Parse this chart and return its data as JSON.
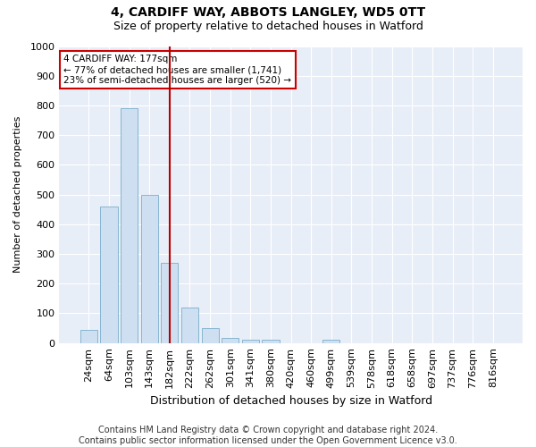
{
  "title1": "4, CARDIFF WAY, ABBOTS LANGLEY, WD5 0TT",
  "title2": "Size of property relative to detached houses in Watford",
  "xlabel": "Distribution of detached houses by size in Watford",
  "ylabel": "Number of detached properties",
  "categories": [
    "24sqm",
    "64sqm",
    "103sqm",
    "143sqm",
    "182sqm",
    "222sqm",
    "262sqm",
    "301sqm",
    "341sqm",
    "380sqm",
    "420sqm",
    "460sqm",
    "499sqm",
    "539sqm",
    "578sqm",
    "618sqm",
    "658sqm",
    "697sqm",
    "737sqm",
    "776sqm",
    "816sqm"
  ],
  "values": [
    45,
    460,
    790,
    500,
    270,
    120,
    50,
    18,
    12,
    10,
    0,
    0,
    10,
    0,
    0,
    0,
    0,
    0,
    0,
    0,
    0
  ],
  "bar_color": "#cddff0",
  "bar_edge_color": "#7aaecb",
  "vline_x_index": 4,
  "vline_color": "#bb0000",
  "annotation_text": "4 CARDIFF WAY: 177sqm\n← 77% of detached houses are smaller (1,741)\n23% of semi-detached houses are larger (520) →",
  "annotation_box_color": "#ffffff",
  "annotation_box_edge": "#cc0000",
  "ylim": [
    0,
    1000
  ],
  "yticks": [
    0,
    100,
    200,
    300,
    400,
    500,
    600,
    700,
    800,
    900,
    1000
  ],
  "footnote": "Contains HM Land Registry data © Crown copyright and database right 2024.\nContains public sector information licensed under the Open Government Licence v3.0.",
  "plot_bg_color": "#e8eef7",
  "fig_bg_color": "#ffffff",
  "grid_color": "#ffffff",
  "title1_fontsize": 10,
  "title2_fontsize": 9,
  "xlabel_fontsize": 9,
  "ylabel_fontsize": 8,
  "tick_fontsize": 8,
  "footnote_fontsize": 7
}
